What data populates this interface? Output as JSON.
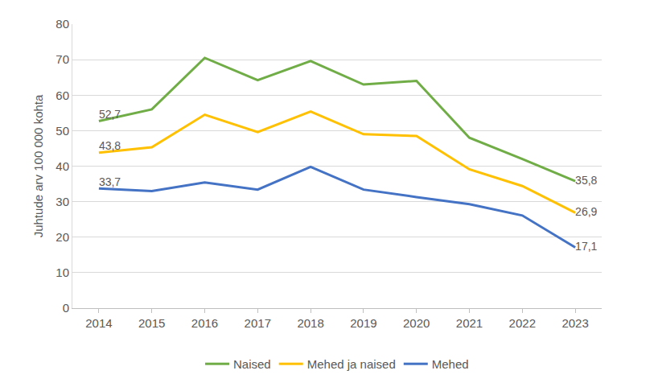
{
  "chart_data": {
    "type": "line",
    "y_label": "Juhtude arv 100 000 kohta",
    "x": [
      2014,
      2015,
      2016,
      2017,
      2018,
      2019,
      2020,
      2021,
      2022,
      2023
    ],
    "xlim": [
      2013.5,
      2023.5
    ],
    "xticks": [
      2014,
      2015,
      2016,
      2017,
      2018,
      2019,
      2020,
      2021,
      2022,
      2023
    ],
    "ylim": [
      0,
      80
    ],
    "yticks": [
      0,
      10,
      20,
      30,
      40,
      50,
      60,
      70,
      80
    ],
    "grid": true,
    "legend": "bottom",
    "data_labels": true,
    "series": [
      {
        "name": "Naised",
        "color": "#70ad47",
        "values": [
          52.7,
          56,
          70.5,
          64.2,
          69.6,
          63,
          64,
          48,
          42,
          35.8
        ],
        "value_labels": [
          "52,7",
          null,
          null,
          null,
          null,
          null,
          null,
          null,
          null,
          "35,8"
        ]
      },
      {
        "name": "Mehed ja naised",
        "color": "#ffc000",
        "values": [
          43.8,
          45.3,
          54.5,
          49.6,
          55.4,
          49,
          48.5,
          39.1,
          34.4,
          26.9
        ],
        "value_labels": [
          "43,8",
          null,
          null,
          null,
          null,
          null,
          null,
          null,
          null,
          "26,9"
        ]
      },
      {
        "name": "Mehed",
        "color": "#4472c4",
        "values": [
          33.7,
          33,
          35.4,
          33.4,
          39.8,
          33.4,
          31.3,
          29.3,
          26.1,
          17.1
        ],
        "value_labels": [
          "33,7",
          null,
          null,
          null,
          null,
          null,
          null,
          null,
          null,
          "17,1"
        ]
      }
    ]
  }
}
